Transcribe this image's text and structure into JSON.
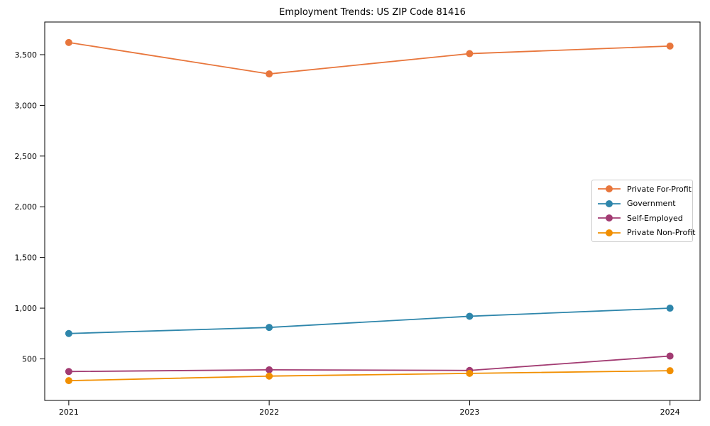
{
  "title": "Employment Trends: US ZIP Code 81416",
  "chart_data": {
    "type": "line",
    "title": "Employment Trends: US ZIP Code 81416",
    "xlabel": "",
    "ylabel": "",
    "x": [
      2021,
      2022,
      2023,
      2024
    ],
    "x_tick_labels": [
      "2021",
      "2022",
      "2023",
      "2024"
    ],
    "series": [
      {
        "name": "Private For-Profit",
        "color": "#E8763C",
        "values": [
          3620,
          3310,
          3510,
          3585
        ]
      },
      {
        "name": "Government",
        "color": "#2E86AB",
        "values": [
          750,
          810,
          920,
          1000
        ]
      },
      {
        "name": "Self-Employed",
        "color": "#A23B72",
        "values": [
          375,
          392,
          386,
          528
        ]
      },
      {
        "name": "Private Non-Profit",
        "color": "#F18F01",
        "values": [
          285,
          330,
          357,
          383
        ]
      }
    ],
    "yticks": [
      500,
      1000,
      1500,
      2000,
      2500,
      3000,
      3500
    ],
    "ytick_labels": [
      "500",
      "1,000",
      "1,500",
      "2,000",
      "2,500",
      "3,000",
      "3,500"
    ],
    "xlim": [
      2020.88,
      2024.15
    ],
    "ylim": [
      90,
      3822
    ],
    "grid": false,
    "legend_position": "center-right",
    "axis_color": "#000000",
    "background_color": "#ffffff"
  }
}
